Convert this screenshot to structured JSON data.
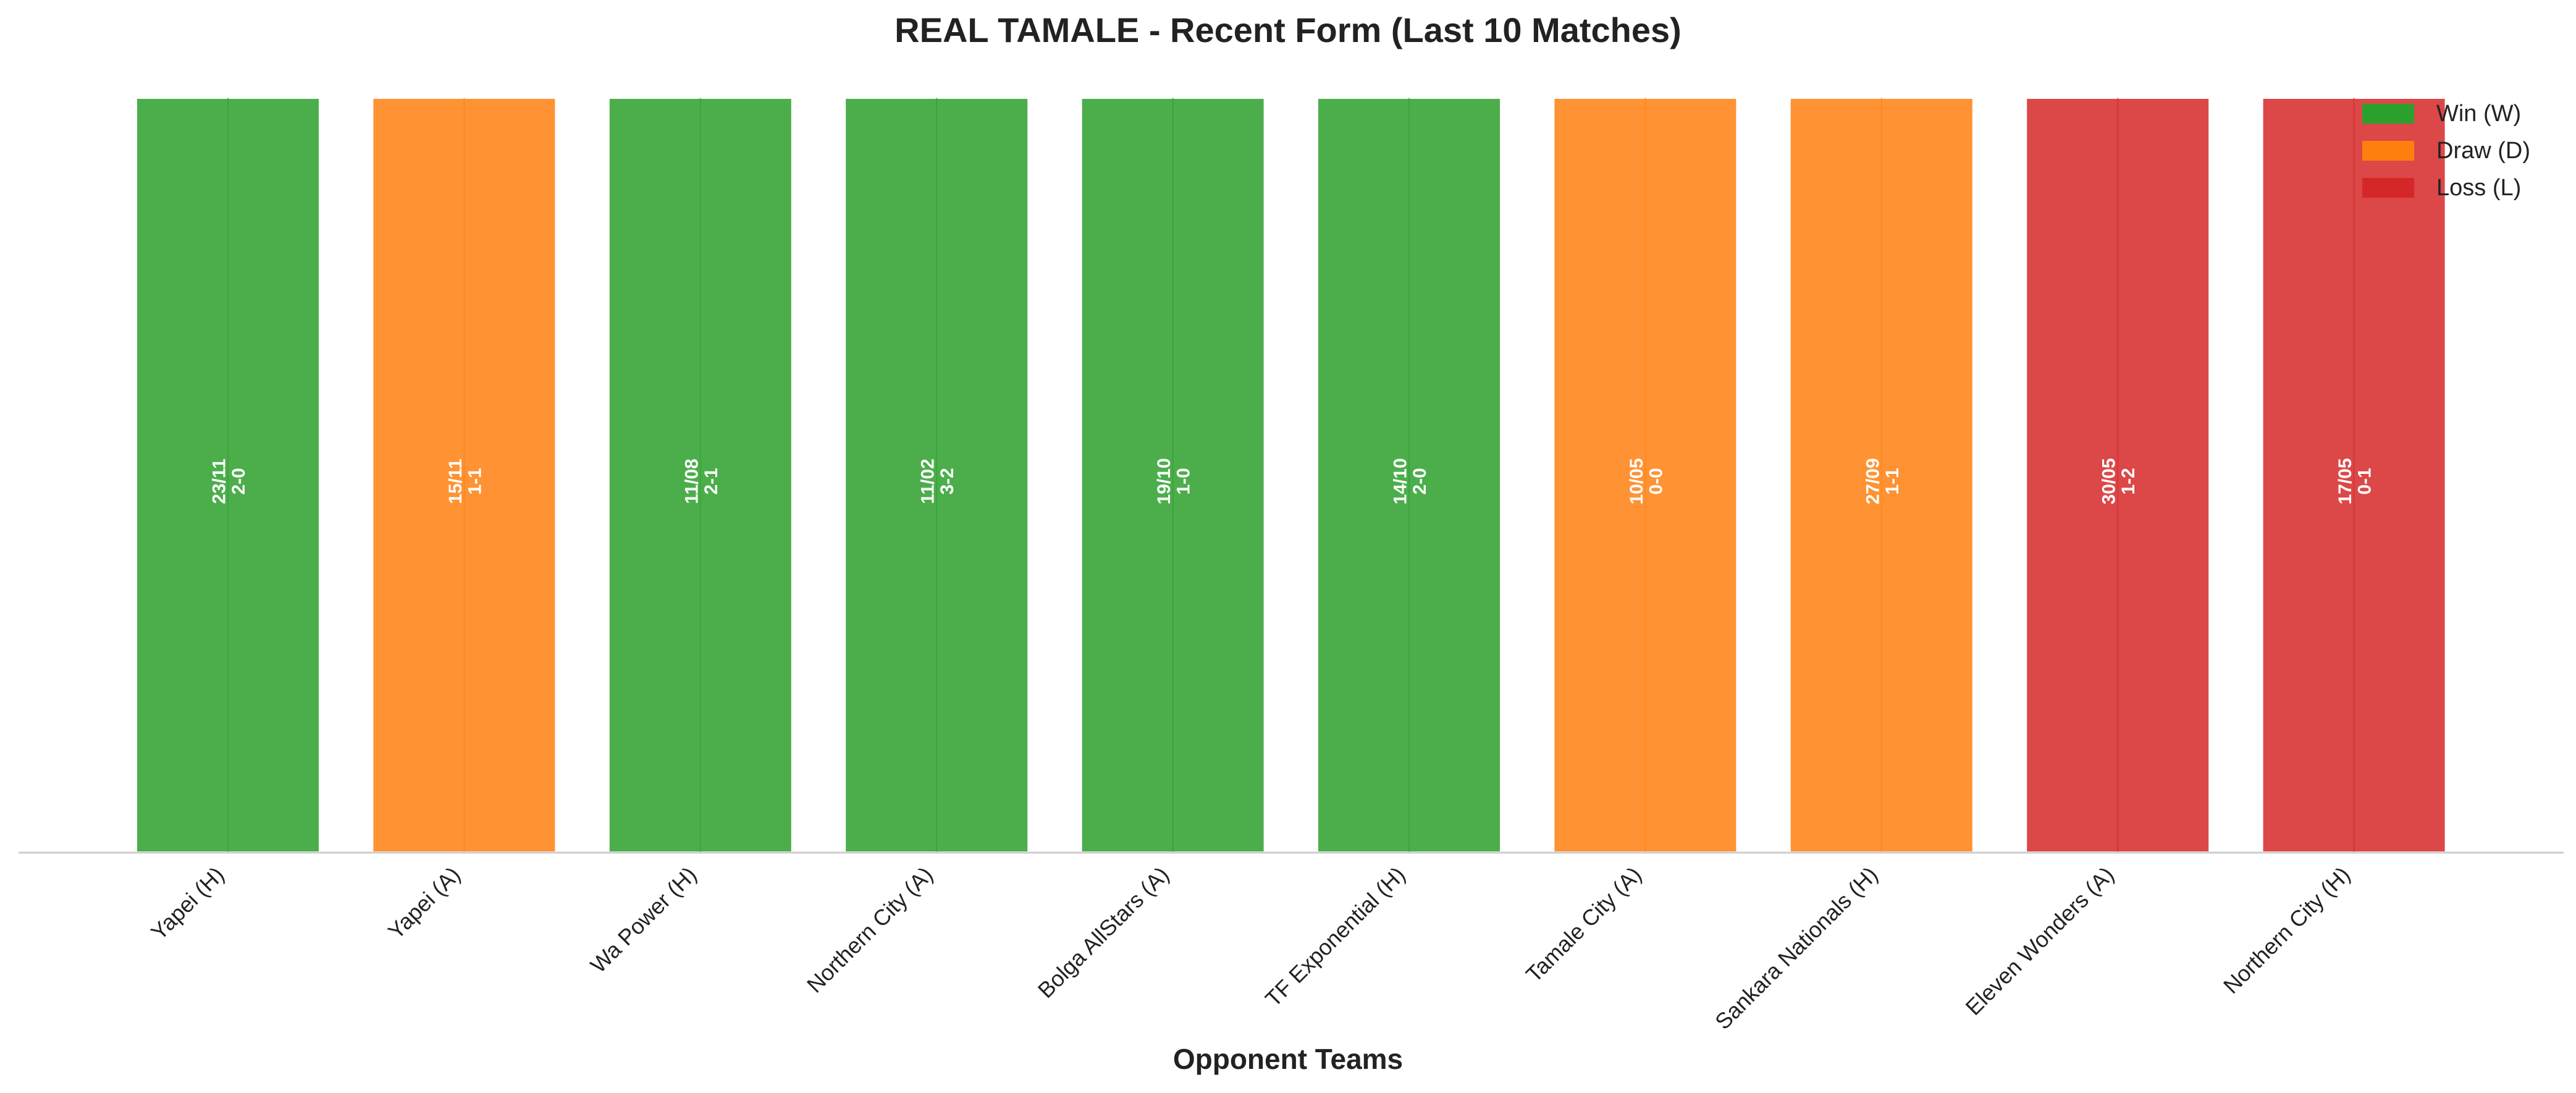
{
  "chart_data": {
    "type": "bar",
    "title": "REAL TAMALE - Recent Form (Last 10 Matches)",
    "xlabel": "Opponent Teams",
    "ylabel": "",
    "ylim": [
      0,
      1
    ],
    "grid": true,
    "legend_position": "top-right",
    "colors": {
      "W": "#2ca02c",
      "D": "#ff7f0e",
      "L": "#d62728"
    },
    "legend": [
      {
        "code": "W",
        "label": "Win (W)"
      },
      {
        "code": "D",
        "label": "Draw (D)"
      },
      {
        "code": "L",
        "label": "Loss (L)"
      }
    ],
    "categories": [
      "Yapei (H)",
      "Yapei (A)",
      "Wa Power (H)",
      "Northern City (A)",
      "Bolga AllStars (A)",
      "TF Exponential (H)",
      "Tamale City (A)",
      "Sankara Nationals (H)",
      "Eleven Wonders (A)",
      "Northern City (H)"
    ],
    "values": [
      1,
      1,
      1,
      1,
      1,
      1,
      1,
      1,
      1,
      1
    ],
    "results": [
      "W",
      "D",
      "W",
      "W",
      "W",
      "W",
      "D",
      "D",
      "L",
      "L"
    ],
    "dates": [
      "23/11",
      "15/11",
      "11/08",
      "11/02",
      "19/10",
      "14/10",
      "10/05",
      "27/09",
      "30/05",
      "17/05"
    ],
    "scores": [
      "2-0",
      "1-1",
      "2-1",
      "3-2",
      "1-0",
      "2-0",
      "0-0",
      "1-1",
      "1-2",
      "0-1"
    ]
  }
}
